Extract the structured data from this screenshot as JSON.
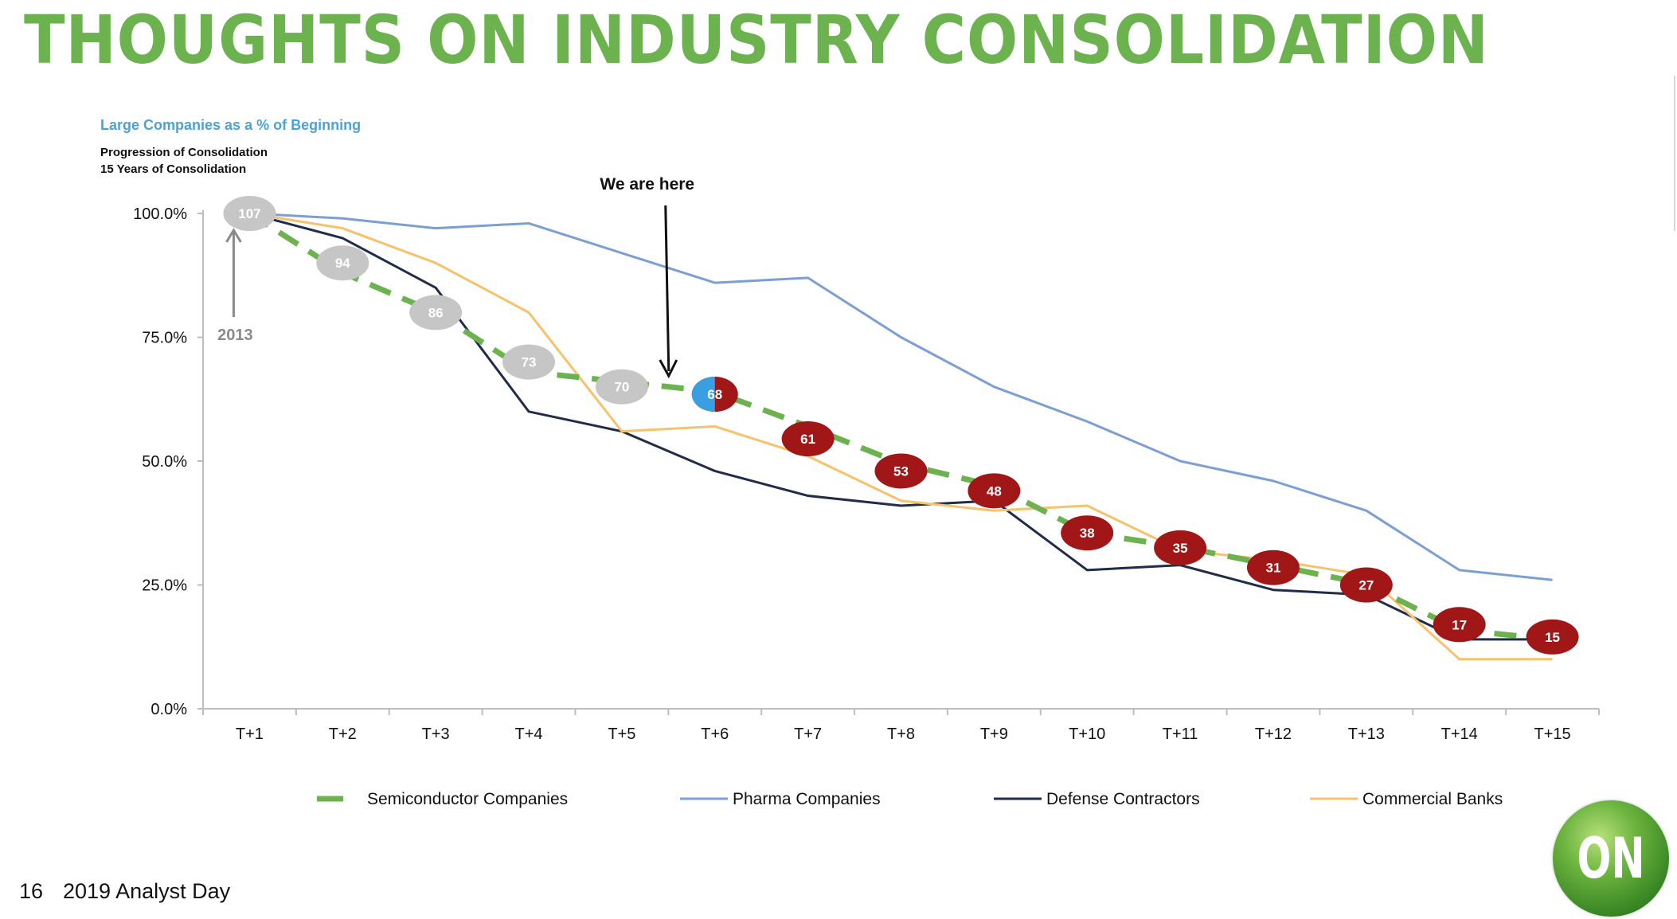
{
  "slide_title": "THOUGHTS ON INDUSTRY CONSOLIDATION",
  "colors": {
    "title_green": "#6cb24f",
    "chart_title_blue": "#4aa3d8",
    "semiconductor": "#6cb24f",
    "pharma": "#7b9fd3",
    "defense": "#1f2d4a",
    "banks": "#f6c26b",
    "marker_gray": "#c6c6c6",
    "marker_red": "#a11616",
    "marker_current_blue": "#3a9fe0"
  },
  "chart_title": "Large Companies as a % of Beginning",
  "subtitle_1": "Progression of Consolidation",
  "subtitle_2": "15 Years of Consolidation",
  "annotations": {
    "we_are_here": "We are here",
    "start_year": "2013"
  },
  "footer": {
    "page_number": "16",
    "event": "2019 Analyst Day"
  },
  "logo": {
    "text": "ON"
  },
  "chart_data": {
    "type": "line",
    "categories": [
      "T+1",
      "T+2",
      "T+3",
      "T+4",
      "T+5",
      "T+6",
      "T+7",
      "T+8",
      "T+9",
      "T+10",
      "T+11",
      "T+12",
      "T+13",
      "T+14",
      "T+15"
    ],
    "ylim": [
      0,
      100
    ],
    "y_ticks": [
      "0.0%",
      "25.0%",
      "50.0%",
      "75.0%",
      "100.0%"
    ],
    "y_tick_values": [
      0,
      25,
      50,
      75,
      100
    ],
    "legend_position": "bottom",
    "series": [
      {
        "name": "Semiconductor Companies",
        "color": "#6cb24f",
        "style": "dashed",
        "values": [
          100,
          88,
          80,
          68,
          66,
          64,
          57,
          49.5,
          45,
          35.5,
          32.7,
          29,
          25.2,
          15.9,
          14
        ]
      },
      {
        "name": "Pharma Companies",
        "color": "#7b9fd3",
        "style": "solid",
        "values": [
          100,
          99,
          97,
          98,
          92,
          86,
          87,
          75,
          65,
          58,
          50,
          46,
          40,
          28,
          26
        ]
      },
      {
        "name": "Defense Contractors",
        "color": "#1f2d4a",
        "style": "solid",
        "values": [
          100,
          95,
          85,
          60,
          56,
          48,
          43,
          41,
          42,
          28,
          29,
          24,
          23,
          14,
          14
        ]
      },
      {
        "name": "Commercial Banks",
        "color": "#f6c26b",
        "style": "solid",
        "values": [
          100,
          97,
          90,
          80,
          56,
          57,
          51,
          42,
          40,
          41,
          32,
          30,
          27,
          10,
          10
        ]
      }
    ],
    "company_counts": [
      {
        "label": "107",
        "x": "T+1",
        "y": 100,
        "color": "gray"
      },
      {
        "label": "94",
        "x": "T+2",
        "y": 90,
        "color": "gray"
      },
      {
        "label": "86",
        "x": "T+3",
        "y": 80,
        "color": "gray"
      },
      {
        "label": "73",
        "x": "T+4",
        "y": 70,
        "color": "gray"
      },
      {
        "label": "70",
        "x": "T+5",
        "y": 65,
        "color": "gray"
      },
      {
        "label": "68",
        "x": "T+6",
        "y": 63.5,
        "color": "current"
      },
      {
        "label": "61",
        "x": "T+7",
        "y": 54.5,
        "color": "red"
      },
      {
        "label": "53",
        "x": "T+8",
        "y": 48,
        "color": "red"
      },
      {
        "label": "48",
        "x": "T+9",
        "y": 44,
        "color": "red"
      },
      {
        "label": "38",
        "x": "T+10",
        "y": 35.5,
        "color": "red"
      },
      {
        "label": "35",
        "x": "T+11",
        "y": 32.5,
        "color": "red"
      },
      {
        "label": "31",
        "x": "T+12",
        "y": 28.5,
        "color": "red"
      },
      {
        "label": "27",
        "x": "T+13",
        "y": 25,
        "color": "red"
      },
      {
        "label": "17",
        "x": "T+14",
        "y": 17,
        "color": "red"
      },
      {
        "label": "15",
        "x": "T+15",
        "y": 14.5,
        "color": "red"
      }
    ]
  }
}
